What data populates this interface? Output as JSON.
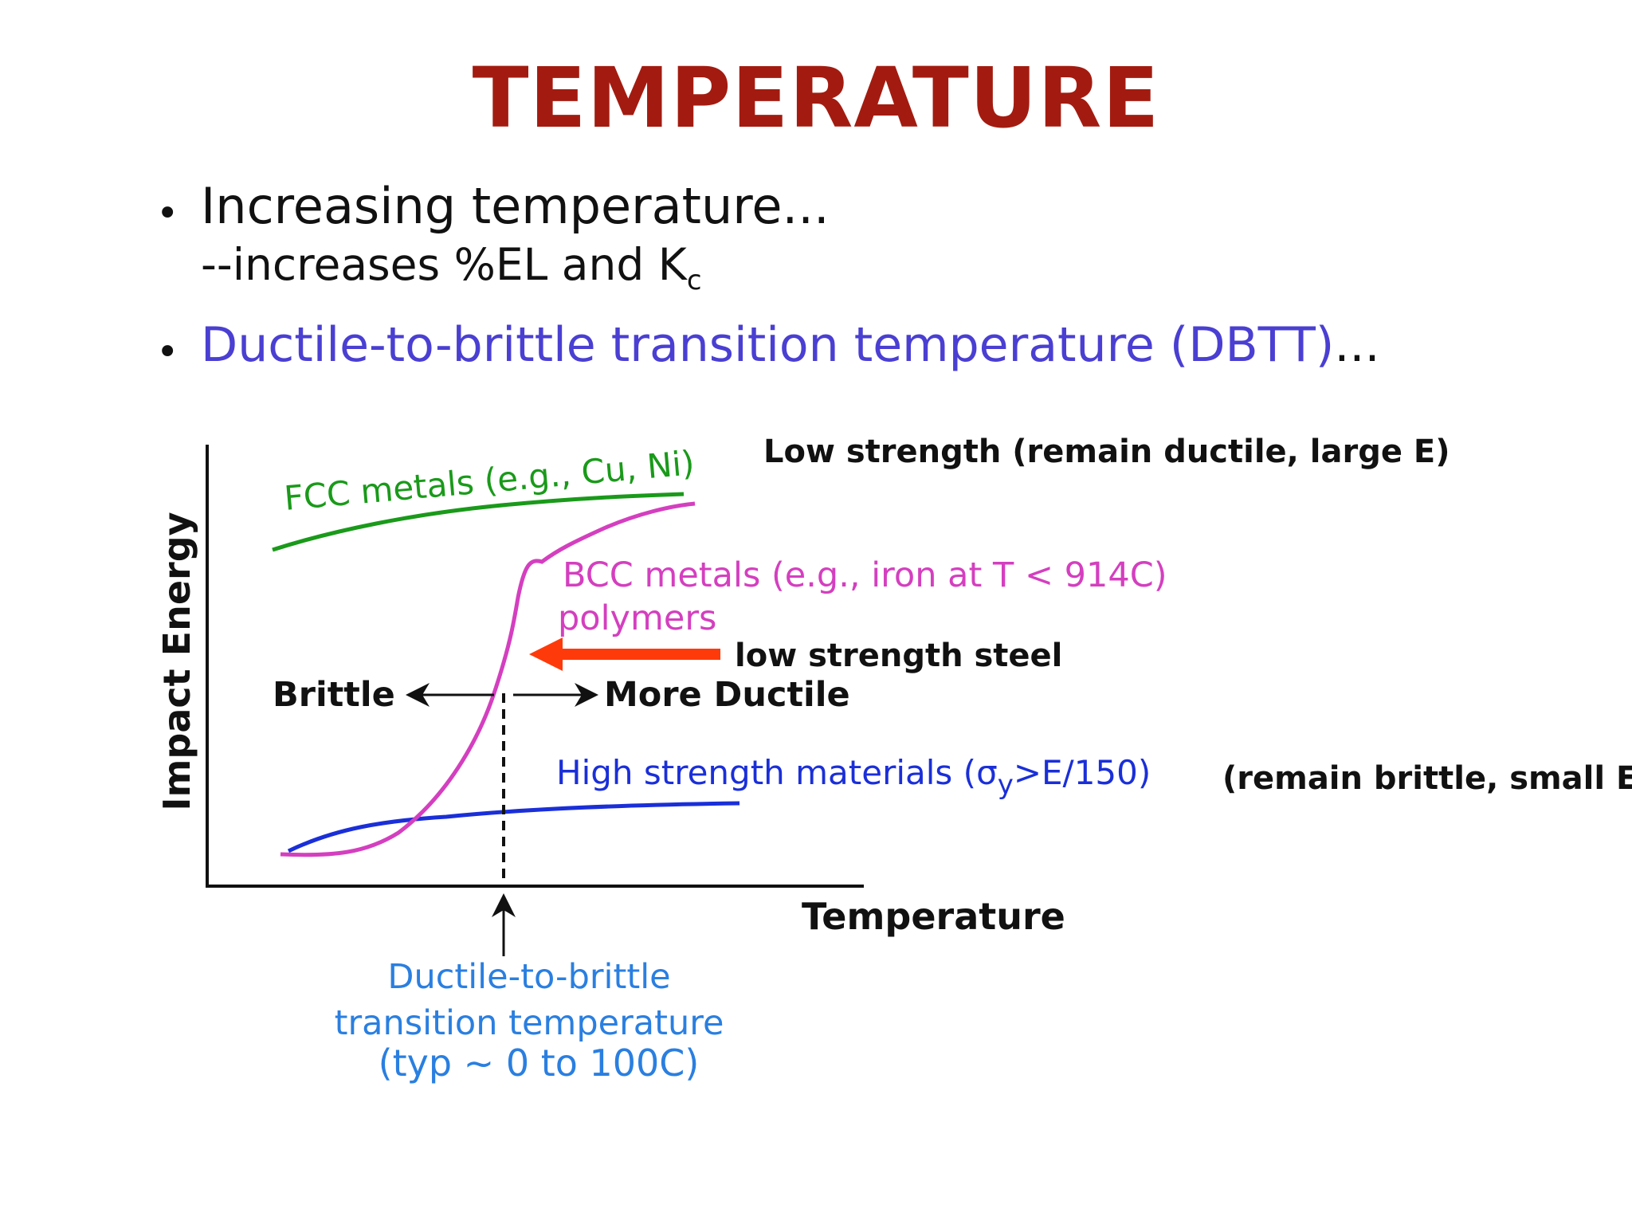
{
  "title": "TEMPERATURE",
  "bullets": [
    {
      "text": "Increasing temperature...",
      "sub_prefix": "--increases %EL and K",
      "sub_subscript": "c"
    },
    {
      "text": "Ductile-to-brittle transition temperature (DBTT)",
      "suffix": "..."
    }
  ],
  "diagram": {
    "y_axis_label": "Impact Energy",
    "x_axis_label": "Temperature",
    "fcc_label": "FCC metals (e.g., Cu, Ni)",
    "fcc_note": "Low strength (remain ductile, large E)",
    "bcc_label_line1": "BCC metals (e.g., iron at T < 914C)",
    "bcc_label_line2": "polymers",
    "steel_note": "low strength steel",
    "brittle_label": "Brittle",
    "ductile_label": "More Ductile",
    "high_strength_prefix": "High strength materials (",
    "high_strength_sigma": "σ",
    "high_strength_sub": "y",
    "high_strength_suffix": ">E/150)",
    "high_strength_note": "(remain brittle, small E )",
    "dbtt_line1": "Ductile-to-brittle",
    "dbtt_line2": "transition temperature",
    "dbtt_line3": "(typ ~ 0 to 100C)",
    "colors": {
      "title": "#a31b10",
      "fcc": "#1a9a1a",
      "bcc": "#d43fbf",
      "high_strength": "#1a2fd8",
      "dbtt": "#2a7fe0",
      "steel_arrow": "#ff3a0a"
    }
  }
}
